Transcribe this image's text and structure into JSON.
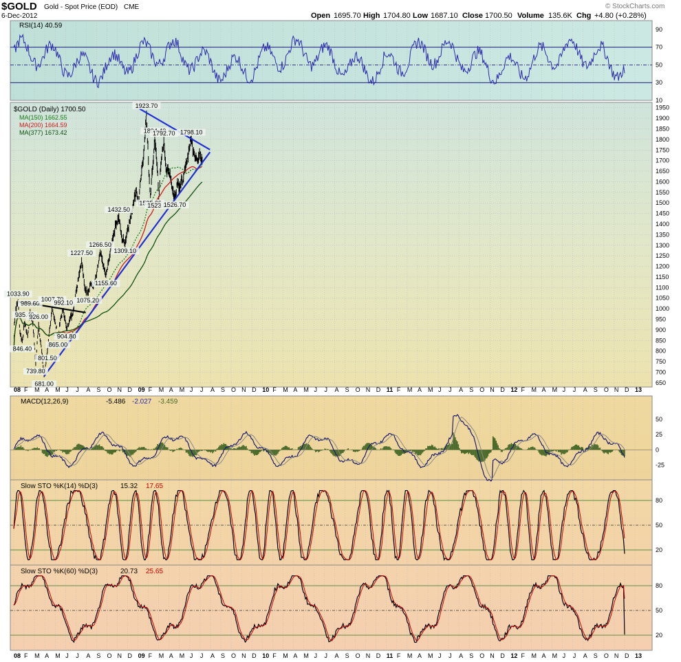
{
  "header": {
    "symbol": "$GOLD",
    "name": "Gold - Spot Price (EOD)",
    "exchange": "CME",
    "date": "6-Dec-2012",
    "open_label": "Open",
    "open": "1695.70",
    "high_label": "High",
    "high": "1704.80",
    "low_label": "Low",
    "low": "1687.10",
    "close_label": "Close",
    "close": "1700.50",
    "volume_label": "Volume",
    "volume": "135.6K",
    "chg_label": "Chg",
    "chg": "+4.80 (+0.28%)",
    "logo": "© StockCharts.com"
  },
  "colors": {
    "price": "#000000",
    "ma150": "#1a7a1a",
    "ma200": "#d01818",
    "ma377": "#0f4f0f",
    "trendline": "#1f2fd8",
    "resistance": "#000000",
    "rsi": "#2a2ab0",
    "macd": "#1a1a70",
    "macd_signal": "#888888",
    "histogram": "#4b6b2b",
    "sto_k": "#000000",
    "sto_d": "#cc0000"
  },
  "x_axis": {
    "labels": [
      "08",
      "F",
      "M",
      "A",
      "M",
      "J",
      "J",
      "A",
      "S",
      "O",
      "N",
      "D",
      "09",
      "F",
      "M",
      "A",
      "M",
      "J",
      "J",
      "A",
      "S",
      "O",
      "N",
      "D",
      "10",
      "F",
      "M",
      "A",
      "M",
      "J",
      "J",
      "A",
      "S",
      "O",
      "N",
      "D",
      "11",
      "F",
      "M",
      "A",
      "M",
      "J",
      "J",
      "A",
      "S",
      "O",
      "N",
      "D",
      "12",
      "F",
      "M",
      "A",
      "M",
      "J",
      "J",
      "A",
      "S",
      "O",
      "N",
      "D",
      "13"
    ],
    "bold": [
      "08",
      "09",
      "10",
      "11",
      "12",
      "13"
    ]
  },
  "chart_data": [
    {
      "type": "line",
      "panel": "rsi",
      "title": "RSI(14) 40.59",
      "ylim": [
        10,
        100
      ],
      "yticks": [
        90,
        70,
        50,
        30,
        10
      ],
      "levels": [
        30,
        70
      ],
      "last": 40.59
    },
    {
      "type": "line",
      "panel": "price",
      "title": "$GOLD (Daily) 1700.50",
      "series": [
        {
          "name": "MA(150) 1662.55",
          "style": "dotted"
        },
        {
          "name": "MA(200) 1664.59",
          "style": "solid"
        },
        {
          "name": "MA(377) 1673.42",
          "style": "solid"
        }
      ],
      "yticks": [
        1950,
        1900,
        1850,
        1800,
        1750,
        1700,
        1650,
        1600,
        1550,
        1500,
        1450,
        1400,
        1350,
        1300,
        1250,
        1200,
        1150,
        1100,
        1050,
        1000,
        950,
        900,
        850,
        800,
        750,
        700,
        650
      ],
      "ylim": [
        630,
        1975
      ],
      "points": [
        {
          "t": 0.0,
          "v": 800
        },
        {
          "t": 0.06,
          "v": 930
        },
        {
          "t": 0.2,
          "v": 1000
        },
        {
          "t": 0.33,
          "v": 1020
        },
        {
          "t": 0.42,
          "v": 1033.9
        },
        {
          "t": 0.6,
          "v": 890
        },
        {
          "t": 0.82,
          "v": 846.4
        },
        {
          "t": 1.05,
          "v": 935.4
        },
        {
          "t": 1.35,
          "v": 870
        },
        {
          "t": 1.58,
          "v": 989.6
        },
        {
          "t": 1.85,
          "v": 930
        },
        {
          "t": 2.12,
          "v": 739.8
        },
        {
          "t": 2.4,
          "v": 926.0
        },
        {
          "t": 2.7,
          "v": 800
        },
        {
          "t": 2.93,
          "v": 681.0
        },
        {
          "t": 3.25,
          "v": 801.5
        },
        {
          "t": 3.55,
          "v": 930
        },
        {
          "t": 3.72,
          "v": 1007.7
        },
        {
          "t": 3.98,
          "v": 940
        },
        {
          "t": 4.28,
          "v": 865.0
        },
        {
          "t": 4.55,
          "v": 960
        },
        {
          "t": 4.8,
          "v": 992.1
        },
        {
          "t": 5.1,
          "v": 904.8
        },
        {
          "t": 5.4,
          "v": 950
        },
        {
          "t": 5.72,
          "v": 980
        },
        {
          "t": 6.0,
          "v": 1080
        },
        {
          "t": 6.3,
          "v": 1160
        },
        {
          "t": 6.55,
          "v": 1227.5
        },
        {
          "t": 6.85,
          "v": 1100
        },
        {
          "t": 7.15,
          "v": 1075.2
        },
        {
          "t": 7.4,
          "v": 1120
        },
        {
          "t": 7.7,
          "v": 1100
        },
        {
          "t": 8.0,
          "v": 1160
        },
        {
          "t": 8.35,
          "v": 1266.5
        },
        {
          "t": 8.65,
          "v": 1200
        },
        {
          "t": 8.9,
          "v": 1155.6
        },
        {
          "t": 9.2,
          "v": 1230
        },
        {
          "t": 9.55,
          "v": 1330
        },
        {
          "t": 9.85,
          "v": 1400
        },
        {
          "t": 10.15,
          "v": 1432.5
        },
        {
          "t": 10.45,
          "v": 1330
        },
        {
          "t": 10.75,
          "v": 1309.1
        },
        {
          "t": 11.0,
          "v": 1380
        },
        {
          "t": 11.25,
          "v": 1420
        },
        {
          "t": 11.55,
          "v": 1500
        },
        {
          "t": 11.85,
          "v": 1560
        },
        {
          "t": 12.05,
          "v": 1500
        },
        {
          "t": 12.3,
          "v": 1620
        },
        {
          "t": 12.6,
          "v": 1760
        },
        {
          "t": 12.82,
          "v": 1923.7
        },
        {
          "t": 13.05,
          "v": 1640
        },
        {
          "t": 13.2,
          "v": 1535.0
        },
        {
          "t": 13.45,
          "v": 1680
        },
        {
          "t": 13.62,
          "v": 1804.4
        },
        {
          "t": 13.9,
          "v": 1640
        },
        {
          "t": 14.0,
          "v": 1523.9
        },
        {
          "t": 14.25,
          "v": 1700
        },
        {
          "t": 14.5,
          "v": 1792.7
        },
        {
          "t": 14.75,
          "v": 1650
        },
        {
          "t": 15.1,
          "v": 1640
        },
        {
          "t": 15.35,
          "v": 1560
        },
        {
          "t": 15.55,
          "v": 1526.7
        },
        {
          "t": 15.8,
          "v": 1600
        },
        {
          "t": 16.1,
          "v": 1580
        },
        {
          "t": 16.4,
          "v": 1620
        },
        {
          "t": 16.7,
          "v": 1690
        },
        {
          "t": 16.95,
          "v": 1760
        },
        {
          "t": 17.15,
          "v": 1798.1
        },
        {
          "t": 17.4,
          "v": 1740
        },
        {
          "t": 17.75,
          "v": 1700
        },
        {
          "t": 17.95,
          "v": 1745
        },
        {
          "t": 18.2,
          "v": 1700.5
        }
      ],
      "annotations": [
        {
          "text": "1033.90",
          "t": 0.42,
          "v": 1033.9,
          "pos": "above"
        },
        {
          "text": "935.40",
          "t": 1.05,
          "v": 935.4,
          "pos": "above"
        },
        {
          "text": "989.60",
          "t": 1.58,
          "v": 989.6,
          "pos": "above"
        },
        {
          "text": "846.40",
          "t": 0.82,
          "v": 846.4,
          "pos": "below"
        },
        {
          "text": "926.00",
          "t": 2.4,
          "v": 926.0,
          "pos": "above"
        },
        {
          "text": "739.80",
          "t": 2.12,
          "v": 739.8,
          "pos": "below"
        },
        {
          "text": "681.00",
          "t": 2.93,
          "v": 681.0,
          "pos": "below"
        },
        {
          "text": "801.50",
          "t": 3.25,
          "v": 801.5,
          "pos": "below"
        },
        {
          "text": "1007.70",
          "t": 3.72,
          "v": 1007.7,
          "pos": "above"
        },
        {
          "text": "865.00",
          "t": 4.28,
          "v": 865.0,
          "pos": "below"
        },
        {
          "text": "992.10",
          "t": 4.8,
          "v": 992.1,
          "pos": "above"
        },
        {
          "text": "904.80",
          "t": 5.1,
          "v": 904.8,
          "pos": "below"
        },
        {
          "text": "1227.50",
          "t": 6.55,
          "v": 1227.5,
          "pos": "above"
        },
        {
          "text": "1075.20",
          "t": 7.15,
          "v": 1075.2,
          "pos": "below"
        },
        {
          "text": "1266.50",
          "t": 8.35,
          "v": 1266.5,
          "pos": "above"
        },
        {
          "text": "1155.60",
          "t": 8.9,
          "v": 1155.6,
          "pos": "below"
        },
        {
          "text": "1432.50",
          "t": 10.15,
          "v": 1432.5,
          "pos": "above"
        },
        {
          "text": "1309.10",
          "t": 10.75,
          "v": 1309.1,
          "pos": "below"
        },
        {
          "text": "1923.70",
          "t": 12.82,
          "v": 1923.7,
          "pos": "above"
        },
        {
          "text": "1535.00",
          "t": 13.2,
          "v": 1535.0,
          "pos": "below"
        },
        {
          "text": "1804.40",
          "t": 13.62,
          "v": 1804.4,
          "pos": "above"
        },
        {
          "text": "1523.90",
          "t": 14.0,
          "v": 1523.9,
          "pos": "below"
        },
        {
          "text": "1792.70",
          "t": 14.5,
          "v": 1792.7,
          "pos": "above"
        },
        {
          "text": "1526.70",
          "t": 15.55,
          "v": 1526.7,
          "pos": "below"
        },
        {
          "text": "1798.10",
          "t": 17.15,
          "v": 1798.1,
          "pos": "above"
        }
      ],
      "trendlines": [
        {
          "name": "rising-support",
          "from": {
            "t": 2.93,
            "v": 681
          },
          "to": {
            "t": 18.95,
            "v": 1740
          }
        },
        {
          "name": "falling-resistance",
          "from": {
            "t": 12.15,
            "v": 1945
          },
          "to": {
            "t": 18.95,
            "v": 1752
          }
        },
        {
          "name": "2008-2009-resistance",
          "from": {
            "t": 0.42,
            "v": 1033.9
          },
          "to": {
            "t": 6.95,
            "v": 982
          }
        }
      ]
    },
    {
      "type": "line",
      "panel": "macd",
      "title": "MACD(12,26,9)",
      "values": {
        "macd": -5.486,
        "signal": -2.027,
        "histogram": -3.459
      },
      "yticks": [
        50,
        25,
        0,
        -25
      ],
      "ylim": [
        -40,
        70
      ]
    },
    {
      "type": "line",
      "panel": "sto14",
      "title": "Slow STO %K(14) %D(3)",
      "values": {
        "k": 15.32,
        "d": 17.65
      },
      "yticks": [
        80,
        50,
        20
      ],
      "levels": [
        20,
        50,
        80
      ],
      "ylim": [
        5,
        95
      ]
    },
    {
      "type": "line",
      "panel": "sto60",
      "title": "Slow STO %K(60) %D(3)",
      "values": {
        "k": 20.73,
        "d": 25.65
      },
      "yticks": [
        80,
        50,
        20
      ],
      "levels": [
        20,
        50,
        80
      ],
      "ylim": [
        5,
        95
      ]
    }
  ]
}
